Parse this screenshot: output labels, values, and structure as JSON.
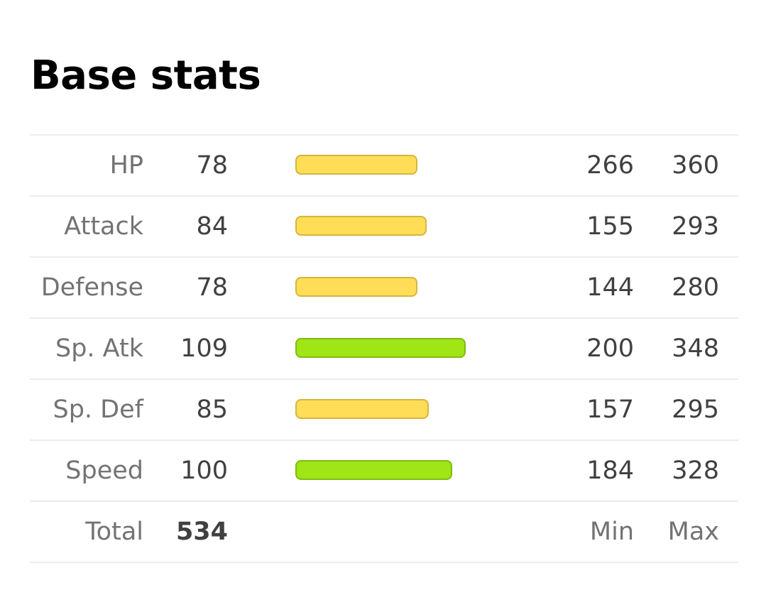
{
  "title": "Base stats",
  "stats": [
    {
      "label": "HP",
      "value": "78",
      "min": "266",
      "max": "360",
      "bar_fraction": 0.307,
      "bar_color": "#ffdd57",
      "bar_border": "#d4b63f"
    },
    {
      "label": "Attack",
      "value": "84",
      "min": "155",
      "max": "293",
      "bar_fraction": 0.331,
      "bar_color": "#ffdd57",
      "bar_border": "#d4b63f"
    },
    {
      "label": "Defense",
      "value": "78",
      "min": "144",
      "max": "280",
      "bar_fraction": 0.307,
      "bar_color": "#ffdd57",
      "bar_border": "#d4b63f"
    },
    {
      "label": "Sp. Atk",
      "value": "109",
      "min": "200",
      "max": "348",
      "bar_fraction": 0.429,
      "bar_color": "#a0e515",
      "bar_border": "#80bb10"
    },
    {
      "label": "Sp. Def",
      "value": "85",
      "min": "157",
      "max": "295",
      "bar_fraction": 0.335,
      "bar_color": "#ffdd57",
      "bar_border": "#d4b63f"
    },
    {
      "label": "Speed",
      "value": "100",
      "min": "184",
      "max": "328",
      "bar_fraction": 0.394,
      "bar_color": "#a0e515",
      "bar_border": "#80bb10"
    }
  ],
  "total": {
    "label": "Total",
    "value": "534",
    "min_label": "Min",
    "max_label": "Max"
  }
}
